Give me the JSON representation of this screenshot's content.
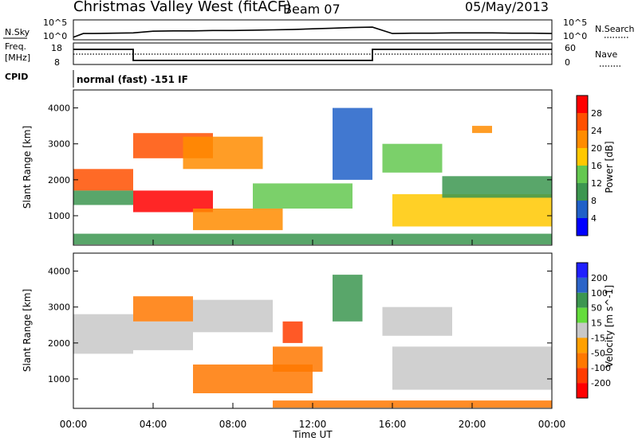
{
  "header": {
    "station": "Christmas Valley West (fitACF)",
    "beam": "Beam 07",
    "date": "05/May/2013"
  },
  "top_panel": {
    "left_label": "N.Sky",
    "right_label": "N.Search",
    "left_ticks": [
      "10^5",
      "10^0"
    ],
    "right_ticks": [
      "10^5",
      "10^0"
    ]
  },
  "freq_panel": {
    "left_label_1": "Freq.",
    "left_label_2": "[MHz]",
    "right_label": "Nave",
    "left_ticks": [
      "18",
      "8"
    ],
    "right_ticks": [
      "60",
      "0"
    ]
  },
  "cpid": {
    "label": "CPID",
    "value": "normal (fast) -151 IF"
  },
  "colors": {
    "power": [
      "#0000ff",
      "#2060c8",
      "#3c9650",
      "#64c850",
      "#ffc800",
      "#ff8c00",
      "#ff5000",
      "#ff0000"
    ],
    "velocity": [
      "#2020ff",
      "#2c64c8",
      "#3c9650",
      "#64dc3c",
      "#c8c8c8",
      "#ffa000",
      "#ff7800",
      "#ff3c00",
      "#ff0000"
    ]
  },
  "chart_data": [
    {
      "type": "line",
      "name": "N.Sky / N.Search",
      "x": [
        0,
        0.5,
        1,
        2,
        3,
        4,
        5,
        6,
        7,
        8,
        9,
        10,
        11,
        12,
        13,
        14,
        15,
        16,
        17,
        18,
        19,
        20,
        21,
        22,
        23,
        24
      ],
      "series": [
        {
          "values_log10": [
            0.3,
            1.4,
            1.4,
            1.5,
            1.6,
            2.1,
            2.2,
            2.2,
            2.3,
            2.3,
            2.4,
            2.5,
            2.6,
            2.8,
            3.0,
            3.2,
            3.3,
            1.4,
            1.5,
            1.5,
            1.6,
            1.6,
            1.6,
            1.5,
            1.5,
            1.4
          ]
        }
      ],
      "ylim_log10": [
        0,
        5
      ]
    },
    {
      "type": "line",
      "name": "Freq / Nave",
      "x": [
        0,
        3,
        3,
        15,
        15,
        24
      ],
      "series": [
        {
          "name": "Freq.",
          "values": [
            15.5,
            15.5,
            9.7,
            9.7,
            15.5,
            15.5
          ]
        },
        {
          "name": "Nave",
          "values": [
            30,
            30,
            30,
            30,
            30,
            30
          ]
        }
      ],
      "ylim": [
        8,
        18
      ]
    },
    {
      "type": "heatmap",
      "name": "power",
      "xlabel": "",
      "ylabel": "Slant Range [km]",
      "x_ticks": [
        "00:00",
        "04:00",
        "08:00",
        "12:00",
        "16:00",
        "20:00",
        "00:00"
      ],
      "xlim": [
        0,
        24
      ],
      "y_ticks": [
        1000,
        2000,
        3000,
        4000
      ],
      "ylim": [
        180,
        4500
      ],
      "colorbar": {
        "label": "Power [dB]",
        "ticks": [
          4,
          8,
          12,
          16,
          20,
          24,
          28
        ]
      },
      "regions": [
        {
          "t": [
            0,
            3
          ],
          "r": [
            1700,
            2300
          ],
          "level": 26
        },
        {
          "t": [
            0,
            3
          ],
          "r": [
            1300,
            1700
          ],
          "level": 10
        },
        {
          "t": [
            3,
            7
          ],
          "r": [
            1100,
            1700
          ],
          "level": 28
        },
        {
          "t": [
            3,
            7
          ],
          "r": [
            2600,
            3300
          ],
          "level": 24
        },
        {
          "t": [
            5.5,
            9.5
          ],
          "r": [
            2300,
            3200
          ],
          "level": 22
        },
        {
          "t": [
            6,
            10.5
          ],
          "r": [
            600,
            1200
          ],
          "level": 22
        },
        {
          "t": [
            9,
            14
          ],
          "r": [
            1200,
            1900
          ],
          "level": 14
        },
        {
          "t": [
            13,
            15
          ],
          "r": [
            2000,
            4000
          ],
          "level": 6
        },
        {
          "t": [
            15.5,
            18.5
          ],
          "r": [
            2200,
            3000
          ],
          "level": 12
        },
        {
          "t": [
            16,
            24
          ],
          "r": [
            700,
            1600
          ],
          "level": 18
        },
        {
          "t": [
            18.5,
            24
          ],
          "r": [
            1500,
            2100
          ],
          "level": 8
        },
        {
          "t": [
            20,
            21
          ],
          "r": [
            3300,
            3500
          ],
          "level": 20
        },
        {
          "t": [
            0,
            24
          ],
          "r": [
            200,
            500
          ],
          "level": 10
        }
      ]
    },
    {
      "type": "heatmap",
      "name": "velocity",
      "xlabel": "Time UT",
      "ylabel": "Slant Range [km]",
      "x_ticks": [
        "00:00",
        "04:00",
        "08:00",
        "12:00",
        "16:00",
        "20:00",
        "00:00"
      ],
      "xlim": [
        0,
        24
      ],
      "y_ticks": [
        1000,
        2000,
        3000,
        4000
      ],
      "ylim": [
        180,
        4500
      ],
      "colorbar": {
        "label": "Velocity [m s^-1]",
        "ticks": [
          200,
          100,
          50,
          15,
          -15,
          -50,
          -100,
          -200
        ]
      },
      "regions": [
        {
          "t": [
            0,
            3
          ],
          "r": [
            1700,
            2800
          ],
          "level": 0
        },
        {
          "t": [
            3,
            6
          ],
          "r": [
            1800,
            2600
          ],
          "level": 0
        },
        {
          "t": [
            3,
            6
          ],
          "r": [
            2600,
            3300
          ],
          "level": -60
        },
        {
          "t": [
            6,
            10
          ],
          "r": [
            2300,
            3200
          ],
          "level": 0
        },
        {
          "t": [
            6,
            12
          ],
          "r": [
            600,
            1400
          ],
          "level": -70
        },
        {
          "t": [
            10,
            12.5
          ],
          "r": [
            1200,
            1900
          ],
          "level": -90
        },
        {
          "t": [
            10.5,
            11.5
          ],
          "r": [
            2000,
            2600
          ],
          "level": -160
        },
        {
          "t": [
            13,
            14.5
          ],
          "r": [
            2600,
            3900
          ],
          "level": 40
        },
        {
          "t": [
            15.5,
            19
          ],
          "r": [
            2200,
            3000
          ],
          "level": 0
        },
        {
          "t": [
            16,
            24
          ],
          "r": [
            700,
            1900
          ],
          "level": 0
        },
        {
          "t": [
            10,
            24
          ],
          "r": [
            200,
            400
          ],
          "level": -70
        }
      ]
    }
  ]
}
